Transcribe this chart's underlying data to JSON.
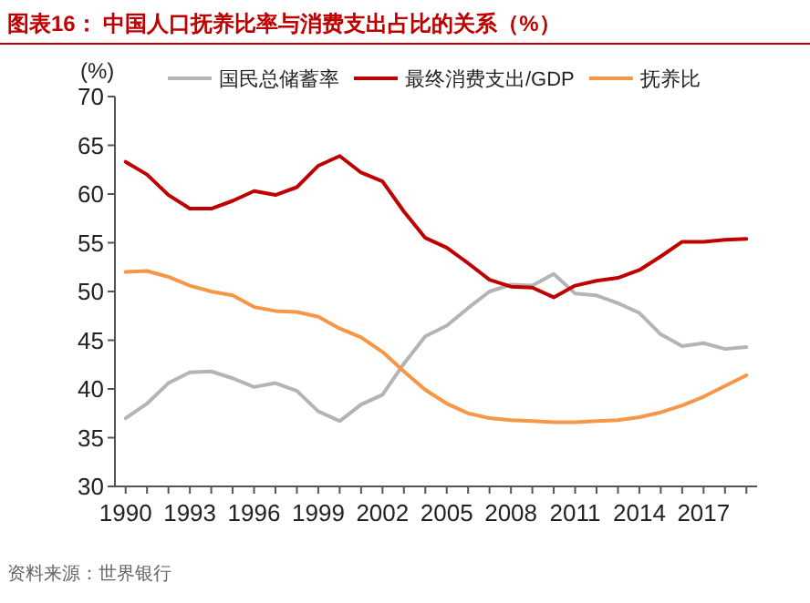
{
  "chart_data": {
    "type": "line",
    "title": "图表16：  中国人口抚养比率与消费支出占比的关系（%）",
    "ylabel": "(%)",
    "annotations": [
      "资料来源：世界银行"
    ],
    "x": [
      1990,
      1991,
      1992,
      1993,
      1994,
      1995,
      1996,
      1997,
      1998,
      1999,
      2000,
      2001,
      2002,
      2003,
      2004,
      2005,
      2006,
      2007,
      2008,
      2009,
      2010,
      2011,
      2012,
      2013,
      2014,
      2015,
      2016,
      2017,
      2018,
      2019
    ],
    "series": [
      {
        "name": "国民总储蓄率",
        "color": "#b4b4b4",
        "values": [
          37,
          38.5,
          40.6,
          41.7,
          41.8,
          41.1,
          40.2,
          40.6,
          39.8,
          37.7,
          36.7,
          38.4,
          39.4,
          42.6,
          45.4,
          46.5,
          48.3,
          50,
          50.7,
          50.6,
          51.8,
          49.8,
          49.6,
          48.8,
          47.8,
          45.6,
          44.4,
          44.7,
          44.1,
          44.3
        ]
      },
      {
        "name": "最终消费支出/GDP",
        "color": "#c00000",
        "values": [
          63.3,
          62,
          59.9,
          58.5,
          58.5,
          59.3,
          60.3,
          59.9,
          60.7,
          62.9,
          63.9,
          62.2,
          61.3,
          58.2,
          55.5,
          54.5,
          52.9,
          51.2,
          50.5,
          50.4,
          49.4,
          50.6,
          51.1,
          51.4,
          52.2,
          53.6,
          55.1,
          55.1,
          55.3,
          55.4
        ]
      },
      {
        "name": "抚养比",
        "color": "#f79646",
        "values": [
          52,
          52.1,
          51.5,
          50.6,
          50,
          49.6,
          48.4,
          48,
          47.9,
          47.4,
          46.2,
          45.3,
          43.8,
          41.8,
          39.9,
          38.5,
          37.5,
          37,
          36.8,
          36.7,
          36.6,
          36.6,
          36.7,
          36.8,
          37.1,
          37.6,
          38.3,
          39.2,
          40.3,
          41.4
        ]
      }
    ],
    "xlim": [
      1989.5,
      2019.5
    ],
    "xticks": [
      1990,
      {
        "value": 1991,
        "label": null
      },
      {
        "value": 1992,
        "label": null
      },
      1993,
      {
        "value": 1994,
        "label": null
      },
      {
        "value": 1995,
        "label": null
      },
      1996,
      {
        "value": 1997,
        "label": null
      },
      {
        "value": 1998,
        "label": null
      },
      1999,
      {
        "value": 2000,
        "label": null
      },
      {
        "value": 2001,
        "label": null
      },
      2002,
      {
        "value": 2003,
        "label": null
      },
      {
        "value": 2004,
        "label": null
      },
      2005,
      {
        "value": 2006,
        "label": null
      },
      {
        "value": 2007,
        "label": null
      },
      2008,
      {
        "value": 2009,
        "label": null
      },
      {
        "value": 2010,
        "label": null
      },
      2011,
      {
        "value": 2012,
        "label": null
      },
      {
        "value": 2013,
        "label": null
      },
      2014,
      {
        "value": 2015,
        "label": null
      },
      {
        "value": 2016,
        "label": null
      },
      2017,
      {
        "value": 2018,
        "label": null
      },
      {
        "value": 2019,
        "label": null
      }
    ],
    "ylim": [
      30,
      70
    ],
    "yticks": [
      30,
      35,
      40,
      45,
      50,
      55,
      60,
      65,
      70
    ],
    "legend": "top",
    "grid": false,
    "marker": "none",
    "line_style": "solid"
  }
}
